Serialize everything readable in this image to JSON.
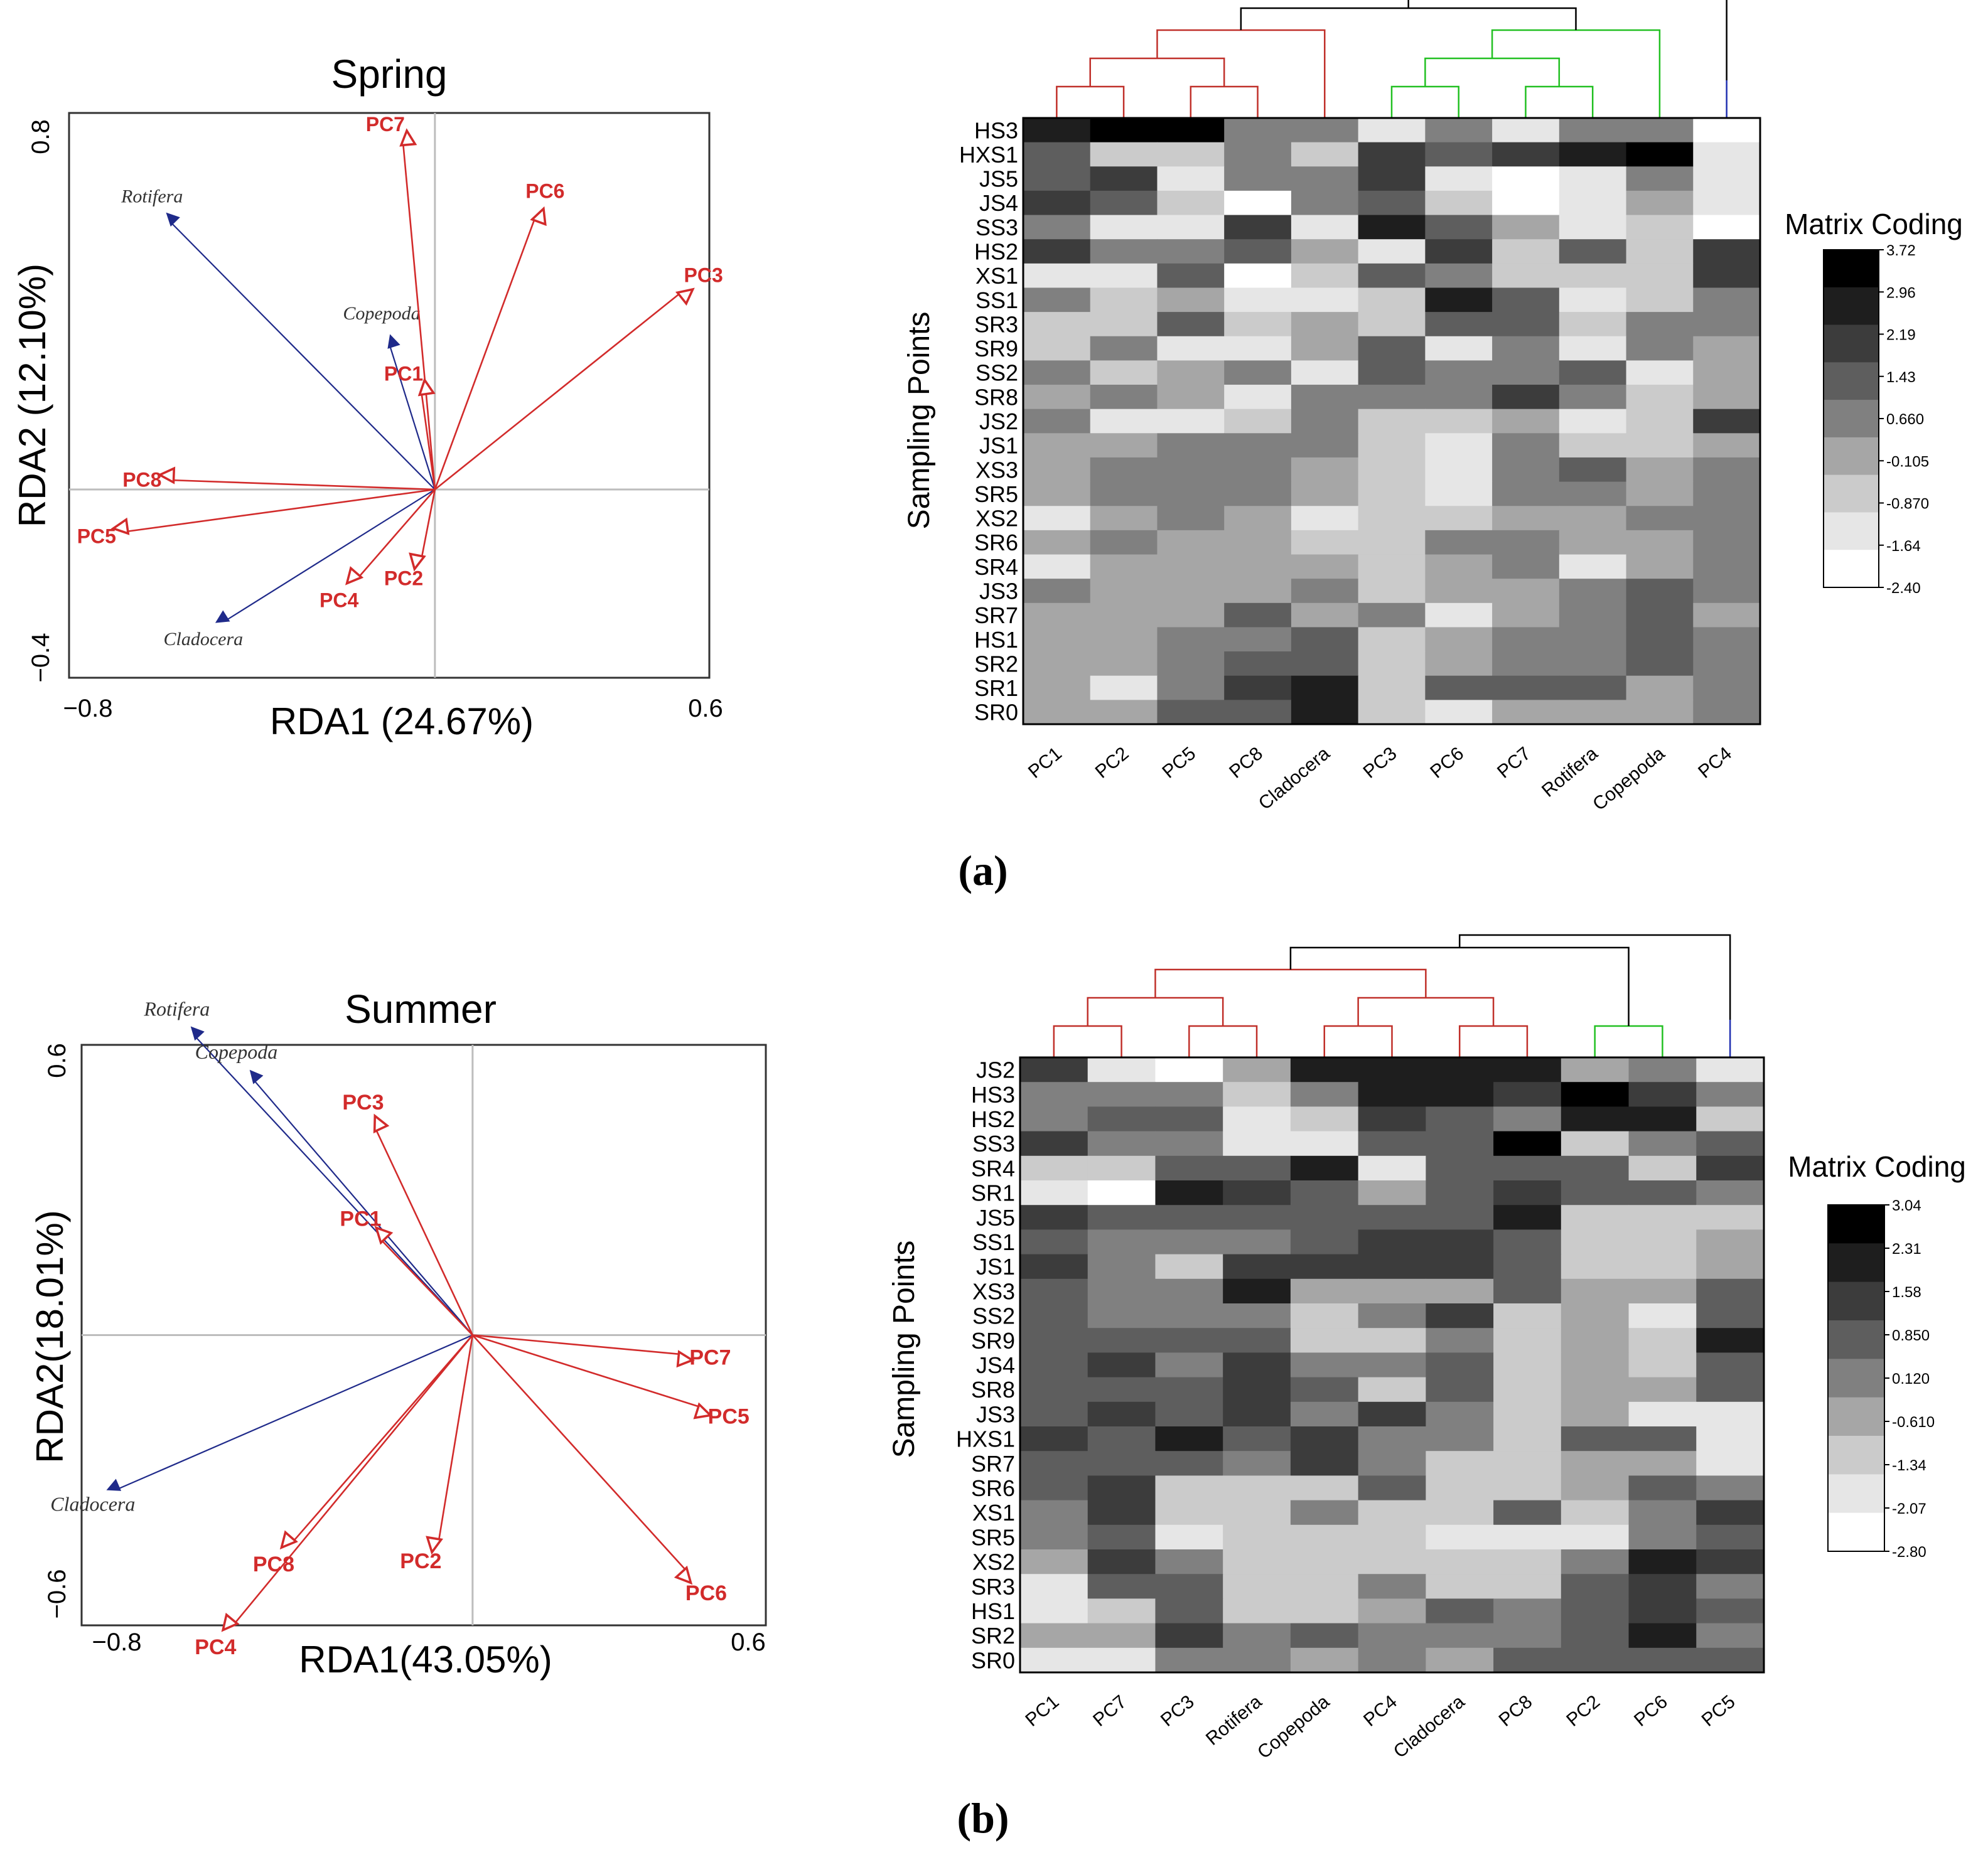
{
  "colors": {
    "env_arrow": "#d22b2b",
    "species_arrow": "#1f2a8a",
    "axis_line": "#bdbdbd",
    "dendro_red": "#c0302a",
    "dendro_green": "#22c022",
    "dendro_blue": "#1f2fb0",
    "dendro_black": "#000000"
  },
  "chart_data": [
    {
      "type": "scatter",
      "subtype": "rda_biplot",
      "title": "Spring",
      "xlabel": "RDA1 (24.67%)",
      "ylabel": "RDA2 (12.10%)",
      "xlim": [
        -0.8,
        0.6
      ],
      "ylim": [
        -0.4,
        0.8
      ],
      "xticks": [
        "−0.8",
        "0.6"
      ],
      "yticks": [
        "0.8",
        "−0.4"
      ],
      "env_vectors": [
        {
          "label": "PC7",
          "x": -0.07,
          "y": 0.74
        },
        {
          "label": "PC6",
          "x": 0.22,
          "y": 0.58
        },
        {
          "label": "PC3",
          "x": 0.54,
          "y": 0.42
        },
        {
          "label": "PC1",
          "x": -0.03,
          "y": 0.21
        },
        {
          "label": "PC8",
          "x": -0.58,
          "y": 0.02
        },
        {
          "label": "PC5",
          "x": -0.68,
          "y": -0.09
        },
        {
          "label": "PC2",
          "x": -0.03,
          "y": -0.15
        },
        {
          "label": "PC4",
          "x": -0.17,
          "y": -0.19
        }
      ],
      "species_vectors": [
        {
          "label": "Rotifera",
          "x": -0.58,
          "y": 0.57
        },
        {
          "label": "Copepoda",
          "x": -0.1,
          "y": 0.31
        },
        {
          "label": "Cladocera",
          "x": -0.46,
          "y": -0.28
        }
      ]
    },
    {
      "type": "heatmap",
      "title": "(a)",
      "ylabel": "Sampling Points",
      "legend_title": "Matrix Coding",
      "legend_ticks": [
        "3.72",
        "2.96",
        "2.19",
        "1.43",
        "0.660",
        "-0.105",
        "-0.870",
        "-1.64",
        "-2.40"
      ],
      "columns": [
        "PC1",
        "PC2",
        "PC5",
        "PC8",
        "Cladocera",
        "PC3",
        "PC6",
        "PC7",
        "Rotifera",
        "Copepoda",
        "PC4"
      ],
      "column_clusters": [
        "red",
        "red",
        "red",
        "red",
        "red",
        "green",
        "green",
        "green",
        "green",
        "green",
        "blue"
      ],
      "rows": [
        "HS3",
        "HXS1",
        "JS5",
        "JS4",
        "SS3",
        "HS2",
        "XS1",
        "SS1",
        "SR3",
        "SR9",
        "SS2",
        "SR8",
        "JS2",
        "JS1",
        "XS3",
        "SR5",
        "XS2",
        "SR6",
        "SR4",
        "JS3",
        "SR7",
        "HS1",
        "SR2",
        "SR1",
        "SR0"
      ],
      "levels": [
        [
          1,
          0,
          0,
          4,
          4,
          7,
          4,
          7,
          4,
          4,
          8
        ],
        [
          3,
          6,
          6,
          4,
          6,
          2,
          3,
          2,
          1,
          0,
          7
        ],
        [
          3,
          2,
          7,
          4,
          4,
          2,
          7,
          8,
          7,
          4,
          7
        ],
        [
          2,
          3,
          6,
          8,
          4,
          3,
          6,
          8,
          7,
          5,
          7
        ],
        [
          4,
          7,
          7,
          2,
          7,
          1,
          3,
          5,
          7,
          6,
          8
        ],
        [
          2,
          4,
          4,
          3,
          5,
          7,
          2,
          6,
          3,
          6,
          2
        ],
        [
          7,
          7,
          3,
          8,
          6,
          3,
          4,
          6,
          6,
          6,
          2
        ],
        [
          4,
          6,
          5,
          7,
          7,
          6,
          1,
          3,
          7,
          6,
          4
        ],
        [
          6,
          6,
          3,
          6,
          5,
          6,
          3,
          3,
          6,
          4,
          4
        ],
        [
          6,
          4,
          7,
          7,
          5,
          3,
          7,
          4,
          7,
          4,
          5
        ],
        [
          4,
          6,
          5,
          4,
          7,
          3,
          4,
          4,
          3,
          7,
          5
        ],
        [
          5,
          4,
          5,
          7,
          4,
          4,
          4,
          2,
          4,
          6,
          5
        ],
        [
          4,
          7,
          7,
          6,
          4,
          6,
          6,
          5,
          7,
          6,
          2
        ],
        [
          5,
          5,
          4,
          4,
          4,
          6,
          7,
          4,
          6,
          6,
          5
        ],
        [
          5,
          4,
          4,
          4,
          5,
          6,
          7,
          4,
          3,
          5,
          4
        ],
        [
          5,
          4,
          4,
          4,
          5,
          6,
          7,
          4,
          4,
          5,
          4
        ],
        [
          7,
          5,
          4,
          5,
          7,
          6,
          6,
          5,
          5,
          4,
          4
        ],
        [
          5,
          4,
          5,
          5,
          6,
          6,
          4,
          4,
          5,
          5,
          4
        ],
        [
          7,
          5,
          5,
          5,
          5,
          6,
          5,
          4,
          7,
          5,
          4
        ],
        [
          4,
          5,
          5,
          5,
          4,
          6,
          5,
          5,
          4,
          3,
          4
        ],
        [
          5,
          5,
          5,
          3,
          5,
          4,
          7,
          5,
          4,
          3,
          5
        ],
        [
          5,
          5,
          4,
          4,
          3,
          6,
          5,
          4,
          4,
          3,
          4
        ],
        [
          5,
          5,
          4,
          3,
          3,
          6,
          5,
          4,
          4,
          3,
          4
        ],
        [
          5,
          7,
          4,
          2,
          1,
          6,
          3,
          3,
          3,
          5,
          4
        ],
        [
          5,
          5,
          3,
          3,
          1,
          6,
          7,
          5,
          5,
          5,
          4
        ]
      ]
    },
    {
      "type": "scatter",
      "subtype": "rda_biplot",
      "title": "Summer",
      "xlabel": "RDA1(43.05%)",
      "ylabel": "RDA2(18.01%)",
      "xlim": [
        -0.8,
        0.6
      ],
      "ylim": [
        -0.6,
        0.6
      ],
      "xticks": [
        "−0.8",
        "0.6"
      ],
      "yticks": [
        "0.6",
        "−0.6"
      ],
      "env_vectors": [
        {
          "label": "PC3",
          "x": -0.2,
          "y": 0.43
        },
        {
          "label": "PC1",
          "x": -0.19,
          "y": 0.2
        },
        {
          "label": "PC7",
          "x": 0.43,
          "y": -0.04
        },
        {
          "label": "PC5",
          "x": 0.47,
          "y": -0.15
        },
        {
          "label": "PC6",
          "x": 0.44,
          "y": -0.49
        },
        {
          "label": "PC2",
          "x": -0.07,
          "y": -0.43
        },
        {
          "label": "PC8",
          "x": -0.37,
          "y": -0.43
        },
        {
          "label": "PC4",
          "x": -0.49,
          "y": -0.6
        }
      ],
      "species_vectors": [
        {
          "label": "Rotifera",
          "x": -0.57,
          "y": 0.62
        },
        {
          "label": "Copepoda",
          "x": -0.45,
          "y": 0.53
        },
        {
          "label": "Cladocera",
          "x": -0.73,
          "y": -0.32
        }
      ]
    },
    {
      "type": "heatmap",
      "title": "(b)",
      "ylabel": "Sampling Points",
      "legend_title": "Matrix Coding",
      "legend_ticks": [
        "3.04",
        "2.31",
        "1.58",
        "0.850",
        "0.120",
        "-0.610",
        "-1.34",
        "-2.07",
        "-2.80"
      ],
      "columns": [
        "PC1",
        "PC7",
        "PC3",
        "Rotifera",
        "Copepoda",
        "PC4",
        "Cladocera",
        "PC8",
        "PC2",
        "PC6",
        "PC5"
      ],
      "column_clusters": [
        "red",
        "red",
        "red",
        "red",
        "red",
        "red",
        "red",
        "red",
        "green",
        "green",
        "blue"
      ],
      "rows": [
        "JS2",
        "HS3",
        "HS2",
        "SS3",
        "SR4",
        "SR1",
        "JS5",
        "SS1",
        "JS1",
        "XS3",
        "SS2",
        "SR9",
        "JS4",
        "SR8",
        "JS3",
        "HXS1",
        "SR7",
        "SR6",
        "XS1",
        "SR5",
        "XS2",
        "SR3",
        "HS1",
        "SR2",
        "SR0"
      ],
      "levels": [
        [
          2,
          7,
          8,
          5,
          1,
          1,
          1,
          1,
          5,
          4,
          7
        ],
        [
          4,
          4,
          4,
          6,
          4,
          1,
          1,
          2,
          0,
          2,
          4
        ],
        [
          4,
          3,
          3,
          7,
          6,
          2,
          3,
          4,
          1,
          1,
          6
        ],
        [
          2,
          4,
          4,
          7,
          7,
          3,
          3,
          0,
          6,
          4,
          3
        ],
        [
          6,
          6,
          3,
          3,
          1,
          7,
          3,
          3,
          3,
          6,
          2
        ],
        [
          7,
          8,
          1,
          2,
          3,
          5,
          3,
          2,
          3,
          3,
          4
        ],
        [
          2,
          3,
          3,
          3,
          3,
          3,
          3,
          1,
          6,
          6,
          6
        ],
        [
          3,
          4,
          4,
          4,
          3,
          2,
          2,
          3,
          6,
          6,
          5
        ],
        [
          2,
          4,
          6,
          2,
          2,
          2,
          2,
          3,
          6,
          6,
          5
        ],
        [
          3,
          4,
          4,
          1,
          5,
          5,
          5,
          3,
          5,
          5,
          3
        ],
        [
          3,
          4,
          4,
          4,
          6,
          4,
          2,
          6,
          5,
          7,
          3
        ],
        [
          3,
          3,
          3,
          3,
          6,
          6,
          4,
          6,
          5,
          6,
          1
        ],
        [
          3,
          2,
          4,
          2,
          4,
          4,
          3,
          6,
          5,
          6,
          3
        ],
        [
          3,
          3,
          3,
          2,
          3,
          6,
          3,
          6,
          5,
          5,
          3
        ],
        [
          3,
          2,
          3,
          2,
          4,
          2,
          4,
          6,
          5,
          7,
          7
        ],
        [
          2,
          3,
          1,
          3,
          2,
          4,
          4,
          6,
          3,
          3,
          7
        ],
        [
          3,
          3,
          3,
          4,
          2,
          4,
          6,
          6,
          5,
          5,
          7
        ],
        [
          3,
          2,
          6,
          6,
          6,
          3,
          6,
          6,
          5,
          3,
          4
        ],
        [
          4,
          2,
          6,
          6,
          4,
          6,
          6,
          3,
          6,
          4,
          2
        ],
        [
          4,
          3,
          7,
          6,
          6,
          6,
          7,
          7,
          7,
          4,
          3
        ],
        [
          5,
          2,
          4,
          6,
          6,
          6,
          6,
          6,
          4,
          1,
          2
        ],
        [
          7,
          3,
          3,
          6,
          6,
          4,
          6,
          6,
          3,
          2,
          4
        ],
        [
          7,
          6,
          3,
          6,
          6,
          5,
          3,
          4,
          3,
          2,
          3
        ],
        [
          5,
          5,
          2,
          4,
          3,
          4,
          4,
          4,
          3,
          1,
          4
        ],
        [
          7,
          7,
          4,
          4,
          5,
          4,
          5,
          3,
          3,
          3,
          3
        ]
      ]
    }
  ]
}
